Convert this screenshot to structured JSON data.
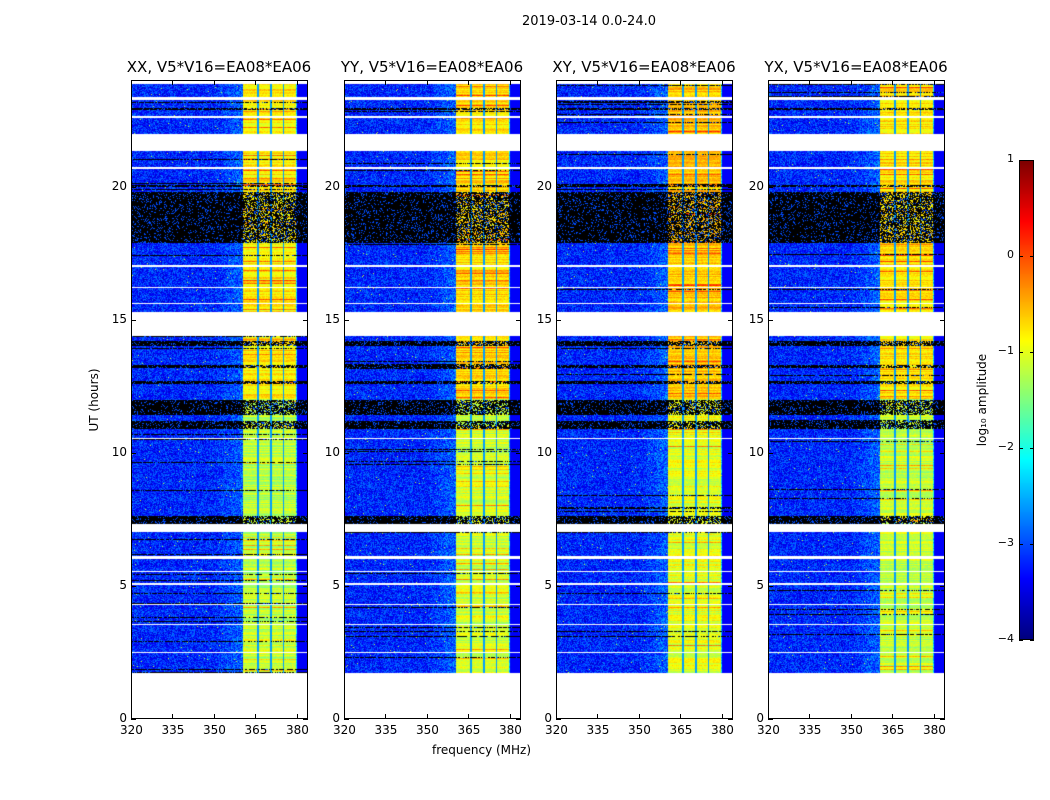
{
  "chart_data": {
    "type": "heatmap",
    "title": "2019-03-14 0.0-24.0",
    "xlabel": "frequency (MHz)",
    "ylabel": "UT (hours)",
    "xlim": [
      320,
      384
    ],
    "ylim": [
      0,
      24
    ],
    "xticks": [
      320,
      335,
      350,
      365,
      380
    ],
    "yticks": [
      0,
      5,
      10,
      15,
      20
    ],
    "panels": [
      {
        "title": "XX, V5*V16=EA08*EA06",
        "band_level": -1.2
      },
      {
        "title": "YY, V5*V16=EA08*EA06",
        "band_level": -1.1
      },
      {
        "title": "XY, V5*V16=EA08*EA06",
        "band_level": -1.0
      },
      {
        "title": "YX, V5*V16=EA08*EA06",
        "band_level": -1.15
      }
    ],
    "data_start_hours": 1.7,
    "background_level": -3.2,
    "bright_band_mhz": [
      360.5,
      380
    ],
    "band_notches_mhz": [
      366,
      370.7,
      375.4
    ],
    "white_gaps_hours": [
      [
        0,
        1.7
      ],
      [
        2.45,
        2.5
      ],
      [
        3.5,
        3.55
      ],
      [
        4.25,
        4.3
      ],
      [
        5.0,
        5.1
      ],
      [
        5.5,
        5.55
      ],
      [
        6.0,
        6.1
      ],
      [
        7.0,
        7.3
      ],
      [
        10.5,
        10.55
      ],
      [
        14.4,
        15.3
      ],
      [
        15.6,
        15.65
      ],
      [
        16.2,
        16.25
      ],
      [
        17.0,
        17.05
      ],
      [
        20.7,
        20.75
      ],
      [
        21.35,
        22.0
      ],
      [
        22.6,
        22.7
      ],
      [
        23.3,
        23.4
      ],
      [
        23.9,
        24
      ]
    ],
    "flagged_hours": [
      [
        7.3,
        7.6
      ],
      [
        10.9,
        11.2
      ],
      [
        11.4,
        12.0
      ],
      [
        12.6,
        12.7
      ],
      [
        13.2,
        13.3
      ],
      [
        14.0,
        14.2
      ],
      [
        17.9,
        19.8
      ],
      [
        20.0,
        20.1
      ],
      [
        22.9,
        23.0
      ]
    ],
    "colorbar": {
      "label": "log₁₀ amplitude",
      "range": [
        -4,
        1
      ],
      "ticks": [
        1,
        0,
        -1,
        -2,
        -3,
        -4
      ],
      "tick_labels": [
        "1",
        "0",
        "−1",
        "−2",
        "−3",
        "−4"
      ],
      "colormap": "jet"
    }
  }
}
